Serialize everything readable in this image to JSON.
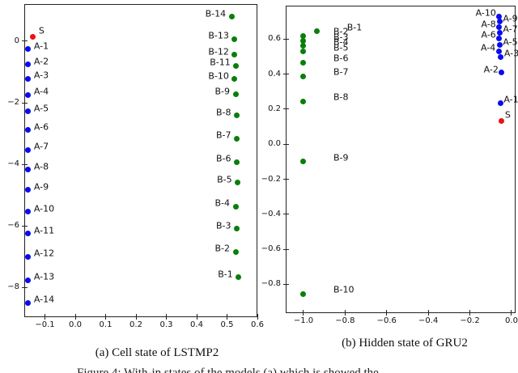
{
  "figure": {
    "caption_a": "(a) Cell state of LSTMP2",
    "caption_b": "(b) Hidden state of GRU2",
    "bottom_caption_partial": "Figure 4: With-in states of the models (a) which is showed the"
  },
  "colors": {
    "blue": "#0b0bf0",
    "green": "#097f09",
    "red": "#ee1111",
    "spine": "#222222",
    "text": "#111111"
  },
  "chart_data": [
    {
      "id": "a",
      "type": "scatter",
      "title": "(a) Cell state of LSTMP2",
      "grid": false,
      "legend": "none",
      "xlim": [
        -0.168,
        0.6
      ],
      "ylim": [
        -8.97,
        1.21
      ],
      "xticks": {
        "values": [
          -0.1,
          0.0,
          0.1,
          0.2,
          0.3,
          0.4,
          0.5,
          0.6
        ],
        "labels": [
          "−0.1",
          "0.0",
          "0.1",
          "0.2",
          "0.3",
          "0.4",
          "0.5",
          "0.6"
        ]
      },
      "yticks": {
        "values": [
          0,
          -2,
          -4,
          -6,
          -8
        ],
        "labels": [
          "0",
          "−2",
          "−4",
          "−6",
          "−8"
        ]
      },
      "points": [
        {
          "label": "S",
          "x": -0.139,
          "y": 0.155,
          "c": "red",
          "side": "r"
        },
        {
          "label": "A-1",
          "x": -0.155,
          "y": -0.26,
          "c": "blue",
          "side": "r"
        },
        {
          "label": "A-2",
          "x": -0.155,
          "y": -0.75,
          "c": "blue",
          "side": "r"
        },
        {
          "label": "A-3",
          "x": -0.155,
          "y": -1.22,
          "c": "blue",
          "side": "r"
        },
        {
          "label": "A-4",
          "x": -0.155,
          "y": -1.74,
          "c": "blue",
          "side": "r"
        },
        {
          "label": "A-5",
          "x": -0.155,
          "y": -2.28,
          "c": "blue",
          "side": "r"
        },
        {
          "label": "A-6",
          "x": -0.155,
          "y": -2.89,
          "c": "blue",
          "side": "r"
        },
        {
          "label": "A-7",
          "x": -0.155,
          "y": -3.53,
          "c": "blue",
          "side": "r"
        },
        {
          "label": "A-8",
          "x": -0.155,
          "y": -4.17,
          "c": "blue",
          "side": "r"
        },
        {
          "label": "A-9",
          "x": -0.155,
          "y": -4.84,
          "c": "blue",
          "side": "r"
        },
        {
          "label": "A-10",
          "x": -0.155,
          "y": -5.54,
          "c": "blue",
          "side": "r"
        },
        {
          "label": "A-11",
          "x": -0.155,
          "y": -6.25,
          "c": "blue",
          "side": "r"
        },
        {
          "label": "A-12",
          "x": -0.155,
          "y": -7.01,
          "c": "blue",
          "side": "r"
        },
        {
          "label": "A-13",
          "x": -0.155,
          "y": -7.76,
          "c": "blue",
          "side": "r"
        },
        {
          "label": "A-14",
          "x": -0.155,
          "y": -8.5,
          "c": "blue",
          "side": "r"
        },
        {
          "label": "B-14",
          "x": 0.515,
          "y": 0.79,
          "c": "green",
          "side": "l"
        },
        {
          "label": "B-13",
          "x": 0.525,
          "y": 0.07,
          "c": "green",
          "side": "l"
        },
        {
          "label": "B-12",
          "x": 0.525,
          "y": -0.44,
          "c": "green",
          "side": "l"
        },
        {
          "label": "B-11",
          "x": 0.53,
          "y": -0.79,
          "c": "green",
          "side": "l"
        },
        {
          "label": "B-10",
          "x": 0.525,
          "y": -1.23,
          "c": "green",
          "side": "l"
        },
        {
          "label": "B-9",
          "x": 0.528,
          "y": -1.73,
          "c": "green",
          "side": "l"
        },
        {
          "label": "B-8",
          "x": 0.532,
          "y": -2.41,
          "c": "green",
          "side": "l"
        },
        {
          "label": "B-7",
          "x": 0.532,
          "y": -3.16,
          "c": "green",
          "side": "l"
        },
        {
          "label": "B-6",
          "x": 0.532,
          "y": -3.92,
          "c": "green",
          "side": "l"
        },
        {
          "label": "B-5",
          "x": 0.535,
          "y": -4.6,
          "c": "green",
          "side": "l"
        },
        {
          "label": "B-4",
          "x": 0.528,
          "y": -5.37,
          "c": "green",
          "side": "l"
        },
        {
          "label": "B-3",
          "x": 0.532,
          "y": -6.1,
          "c": "green",
          "side": "l"
        },
        {
          "label": "B-2",
          "x": 0.528,
          "y": -6.84,
          "c": "green",
          "side": "l"
        },
        {
          "label": "B-1",
          "x": 0.538,
          "y": -7.68,
          "c": "green",
          "side": "l"
        }
      ]
    },
    {
      "id": "b",
      "type": "scatter",
      "title": "(b) Hidden state of GRU2",
      "grid": false,
      "legend": "none",
      "xlim": [
        -1.0856,
        0.0195
      ],
      "ylim": [
        -0.964,
        0.791
      ],
      "xticks": {
        "values": [
          -1.0,
          -0.8,
          -0.6,
          -0.4,
          -0.2,
          0.0
        ],
        "labels": [
          "−1.0",
          "−0.8",
          "−0.6",
          "−0.4",
          "−0.2",
          "0.0"
        ]
      },
      "yticks": {
        "values": [
          0.6,
          0.4,
          0.2,
          0.0,
          -0.2,
          -0.4,
          -0.6,
          -0.8
        ],
        "labels": [
          "0.6",
          "0.4",
          "0.2",
          "0.0",
          "−0.2",
          "−0.4",
          "−0.6",
          "−0.8"
        ]
      },
      "points": [
        {
          "label": "B-1",
          "x": -0.935,
          "y": 0.645,
          "c": "green",
          "side": "far"
        },
        {
          "label": "B-2",
          "x": -1.0,
          "y": 0.62,
          "c": "green",
          "side": "far"
        },
        {
          "label": "B-3",
          "x": -1.0,
          "y": 0.589,
          "c": "green",
          "side": "far"
        },
        {
          "label": "B-4",
          "x": -1.0,
          "y": 0.562,
          "c": "green",
          "side": "far"
        },
        {
          "label": "B-5",
          "x": -1.0,
          "y": 0.528,
          "c": "green",
          "side": "far"
        },
        {
          "label": "B-6",
          "x": -1.0,
          "y": 0.466,
          "c": "green",
          "side": "far"
        },
        {
          "label": "B-7",
          "x": -1.0,
          "y": 0.388,
          "c": "green",
          "side": "far"
        },
        {
          "label": "B-8",
          "x": -1.0,
          "y": 0.245,
          "c": "green",
          "side": "far"
        },
        {
          "label": "B-9",
          "x": -1.0,
          "y": -0.1,
          "c": "green",
          "side": "far"
        },
        {
          "label": "B-10",
          "x": -1.0,
          "y": -0.855,
          "c": "green",
          "side": "far"
        },
        {
          "label": "A-10",
          "x": -0.059,
          "y": 0.73,
          "c": "blue",
          "side": "l"
        },
        {
          "label": "A-9",
          "x": -0.057,
          "y": 0.7,
          "c": "blue",
          "side": "r"
        },
        {
          "label": "A-8",
          "x": -0.059,
          "y": 0.668,
          "c": "blue",
          "side": "l"
        },
        {
          "label": "A-7",
          "x": -0.057,
          "y": 0.638,
          "c": "blue",
          "side": "r"
        },
        {
          "label": "A-6",
          "x": -0.059,
          "y": 0.606,
          "c": "blue",
          "side": "l"
        },
        {
          "label": "A-5",
          "x": -0.057,
          "y": 0.565,
          "c": "blue",
          "side": "r"
        },
        {
          "label": "A-4",
          "x": -0.061,
          "y": 0.531,
          "c": "blue",
          "side": "l"
        },
        {
          "label": "A-3",
          "x": -0.051,
          "y": 0.5,
          "c": "blue",
          "side": "r"
        },
        {
          "label": "A-2",
          "x": -0.047,
          "y": 0.408,
          "c": "blue",
          "side": "l"
        },
        {
          "label": "A-1",
          "x": -0.053,
          "y": 0.235,
          "c": "blue",
          "side": "r"
        },
        {
          "label": "S",
          "x": -0.047,
          "y": 0.135,
          "c": "red",
          "side": "r"
        }
      ]
    }
  ]
}
